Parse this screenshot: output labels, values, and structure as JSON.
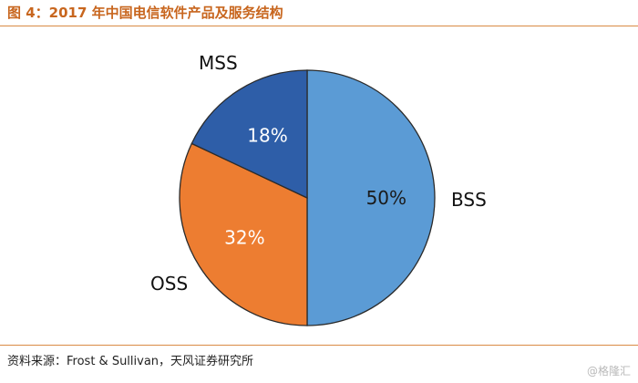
{
  "title": "图 4：2017 年中国电信软件产品及服务结构",
  "source": "资料来源：Frost & Sullivan，天风证券研究所",
  "watermark": "@格隆汇",
  "colors": {
    "accent": "#c8661e",
    "BSS": "#5b9bd5",
    "OSS": "#ed7d31",
    "MSS": "#2e5ea8"
  },
  "chart_data": {
    "type": "pie",
    "title": "图 4：2017 年中国电信软件产品及服务结构",
    "slices": [
      {
        "label": "BSS",
        "value": 50,
        "value_label": "50%",
        "color": "#5b9bd5",
        "value_text_color": "#1a1a1a"
      },
      {
        "label": "OSS",
        "value": 32,
        "value_label": "32%",
        "color": "#ed7d31",
        "value_text_color": "#ffffff"
      },
      {
        "label": "MSS",
        "value": 18,
        "value_label": "18%",
        "color": "#2e5ea8",
        "value_text_color": "#ffffff"
      }
    ],
    "start": "12 o'clock",
    "direction": "clockwise",
    "legend": "none (direct labels)"
  }
}
